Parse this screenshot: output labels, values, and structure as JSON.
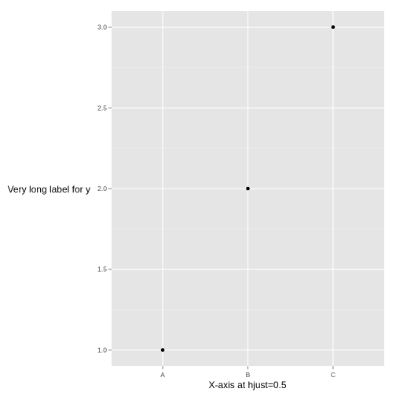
{
  "chart_data": {
    "type": "scatter",
    "title": "",
    "xlabel": "X-axis at hjust=0.5",
    "ylabel": "Very long label for y",
    "categories": [
      "A",
      "B",
      "C"
    ],
    "x": [
      "A",
      "B",
      "C"
    ],
    "values": [
      1.0,
      2.0,
      3.0
    ],
    "ylim": [
      0.9,
      3.1
    ],
    "yticks": [
      1.0,
      1.5,
      2.0,
      2.5,
      3.0
    ],
    "ytick_labels": [
      "1.0",
      "1.5",
      "2.0",
      "2.5",
      "3.0"
    ],
    "grid": true,
    "legend": "none"
  },
  "colors": {
    "panel_background": "#e5e5e5",
    "grid_major": "#ffffff",
    "grid_minor": "#f2f2f2",
    "point": "#000000",
    "tick": "#7f7f7f",
    "tick_label": "#4d4d4d",
    "axis_title": "#000000"
  }
}
